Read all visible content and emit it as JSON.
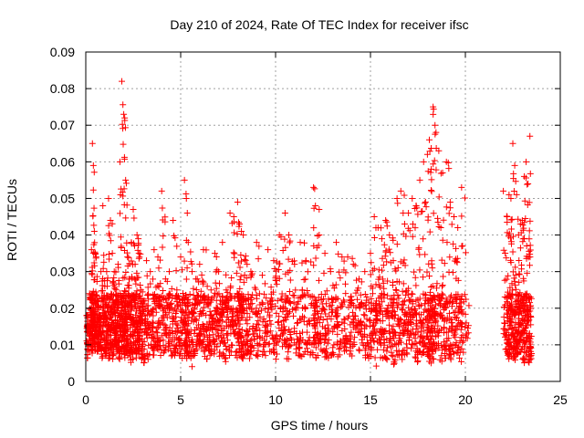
{
  "chart_data": {
    "type": "scatter",
    "title": "Day 210 of 2024, Rate Of TEC Index for receiver ifsc",
    "xlabel": "GPS time / hours",
    "ylabel": "ROTI / TECUs",
    "xlim": [
      0,
      25
    ],
    "ylim": [
      0,
      0.09
    ],
    "x_ticks": [
      "0",
      "5",
      "10",
      "15",
      "20",
      "25"
    ],
    "y_ticks": [
      "0",
      "0.01",
      "0.02",
      "0.03",
      "0.04",
      "0.05",
      "0.06",
      "0.07",
      "0.08",
      "0.09"
    ],
    "grid": true,
    "marker": "+",
    "color": "#ff0000",
    "series": [
      {
        "x": [
          0.05,
          0.1,
          0.2,
          0.3,
          0.35,
          0.4,
          0.45,
          0.5,
          0.6,
          0.7,
          0.8,
          0.9,
          1.0,
          1.1,
          1.2,
          1.3,
          1.4,
          1.5,
          1.6,
          1.7,
          1.8,
          1.9,
          2.0,
          2.05,
          2.1,
          2.2,
          2.3,
          2.4,
          2.5,
          2.6,
          2.7,
          2.8,
          2.9,
          3.0,
          3.2,
          3.4,
          3.6,
          3.8,
          4.0,
          4.2,
          4.4,
          4.6,
          4.8,
          5.0,
          5.2,
          5.3,
          5.4,
          5.6,
          5.8,
          6.0,
          6.2,
          6.4,
          6.6,
          6.8,
          7.0,
          7.2,
          7.4,
          7.6,
          7.8,
          8.0,
          8.1,
          8.2,
          8.3,
          8.5,
          8.7,
          9.0,
          9.3,
          9.6,
          9.9,
          10.2,
          10.5,
          10.7,
          11.0,
          11.3,
          11.6,
          12.0,
          12.1,
          12.3,
          12.6,
          12.9,
          13.2,
          13.5,
          13.8,
          14.1,
          14.4,
          14.7,
          15.0,
          15.2,
          15.4,
          15.6,
          15.8,
          16.0,
          16.2,
          16.4,
          16.6,
          16.8,
          17.0,
          17.2,
          17.4,
          17.6,
          17.8,
          18.0,
          18.1,
          18.2,
          18.3,
          18.4,
          18.6,
          18.8,
          19.0,
          19.2,
          19.4,
          19.6,
          19.8,
          22.0,
          22.2,
          22.3,
          22.4,
          22.5,
          22.6,
          22.7,
          22.8,
          22.9,
          23.0,
          23.1,
          23.2,
          23.3,
          23.4
        ],
        "y": [
          0.018,
          0.015,
          0.024,
          0.036,
          0.065,
          0.059,
          0.041,
          0.035,
          0.022,
          0.018,
          0.03,
          0.048,
          0.026,
          0.03,
          0.05,
          0.044,
          0.035,
          0.03,
          0.025,
          0.032,
          0.06,
          0.082,
          0.073,
          0.072,
          0.055,
          0.034,
          0.028,
          0.038,
          0.047,
          0.032,
          0.04,
          0.035,
          0.025,
          0.022,
          0.033,
          0.03,
          0.036,
          0.034,
          0.052,
          0.028,
          0.03,
          0.044,
          0.025,
          0.034,
          0.055,
          0.05,
          0.038,
          0.03,
          0.028,
          0.032,
          0.036,
          0.026,
          0.025,
          0.035,
          0.03,
          0.038,
          0.025,
          0.046,
          0.045,
          0.049,
          0.043,
          0.041,
          0.04,
          0.032,
          0.03,
          0.038,
          0.029,
          0.036,
          0.033,
          0.04,
          0.046,
          0.04,
          0.032,
          0.038,
          0.033,
          0.053,
          0.048,
          0.04,
          0.035,
          0.03,
          0.038,
          0.034,
          0.034,
          0.032,
          0.028,
          0.03,
          0.035,
          0.045,
          0.042,
          0.039,
          0.044,
          0.04,
          0.033,
          0.05,
          0.052,
          0.043,
          0.046,
          0.05,
          0.048,
          0.055,
          0.06,
          0.062,
          0.066,
          0.058,
          0.075,
          0.07,
          0.063,
          0.057,
          0.06,
          0.049,
          0.045,
          0.042,
          0.053,
          0.052,
          0.045,
          0.051,
          0.05,
          0.065,
          0.059,
          0.051,
          0.04,
          0.043,
          0.044,
          0.056,
          0.06,
          0.054,
          0.067
        ],
        "y_low": [
          0.006,
          0.008,
          0.009,
          0.007,
          0.008,
          0.01,
          0.007,
          0.006,
          0.008,
          0.009,
          0.006,
          0.008,
          0.007,
          0.009,
          0.006,
          0.007,
          0.005,
          0.007,
          0.008,
          0.006,
          0.007,
          0.008,
          0.007,
          0.006,
          0.008,
          0.006,
          0.005,
          0.006,
          0.007,
          0.006,
          0.007,
          0.008,
          0.006,
          0.005,
          0.006,
          0.007,
          0.008,
          0.006,
          0.007,
          0.008,
          0.006,
          0.007,
          0.006,
          0.005,
          0.007,
          0.006,
          0.004,
          0.007,
          0.008,
          0.007,
          0.006,
          0.006,
          0.007,
          0.008,
          0.006,
          0.005,
          0.007,
          0.008,
          0.006,
          0.007,
          0.008,
          0.006,
          0.007,
          0.005,
          0.007,
          0.006,
          0.007,
          0.008,
          0.006,
          0.007,
          0.006,
          0.008,
          0.007,
          0.006,
          0.007,
          0.008,
          0.006,
          0.006,
          0.005,
          0.007,
          0.006,
          0.007,
          0.006,
          0.008,
          0.007,
          0.006,
          0.005,
          0.004,
          0.005,
          0.006,
          0.005,
          0.006,
          0.004,
          0.007,
          0.005,
          0.006,
          0.007,
          0.006,
          0.005,
          0.006,
          0.007,
          0.006,
          0.005,
          0.006,
          0.006,
          0.007,
          0.005,
          0.006,
          0.007,
          0.006,
          0.006,
          0.005,
          0.007,
          0.008,
          0.006,
          0.005,
          0.006,
          0.006,
          0.005,
          0.006,
          0.007,
          0.008,
          0.006,
          0.005,
          0.006,
          0.004,
          0.005
        ]
      }
    ]
  }
}
